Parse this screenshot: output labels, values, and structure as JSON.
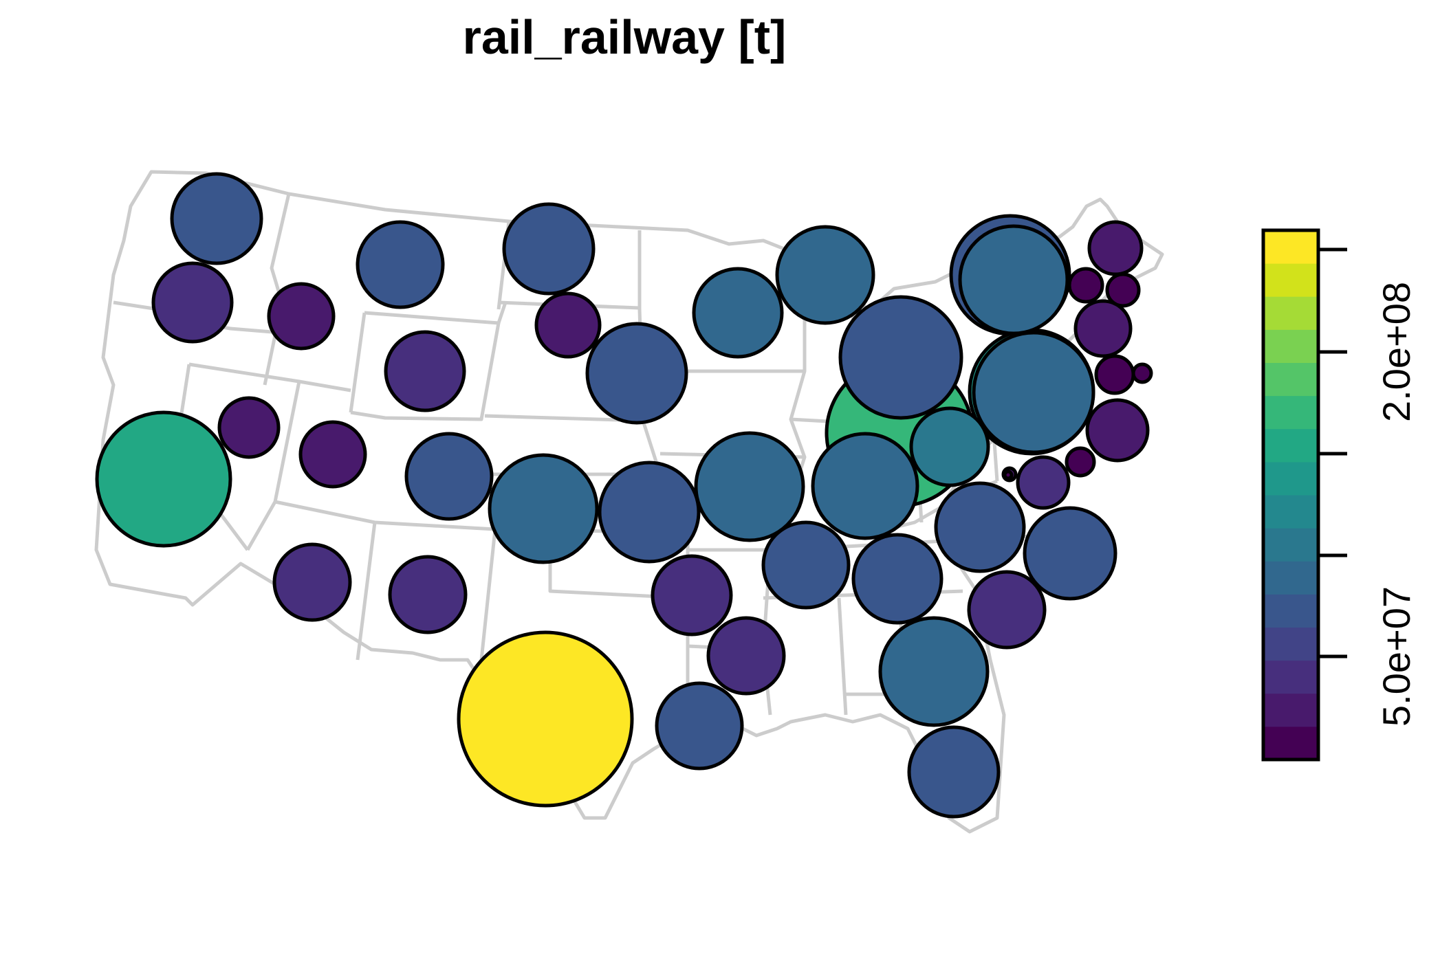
{
  "title": "rail_railway [t]",
  "legend": {
    "colors": [
      "#440154",
      "#481A6C",
      "#472F7D",
      "#414487",
      "#39568C",
      "#31688E",
      "#2A788E",
      "#23888E",
      "#1F988B",
      "#22A884",
      "#35B779",
      "#54C568",
      "#7AD151",
      "#A5DB36",
      "#D2E21B",
      "#FDE725"
    ],
    "ticks": [
      {
        "label": "5.0e+07",
        "labeled": true
      },
      {
        "label": "",
        "labeled": false
      },
      {
        "label": "",
        "labeled": false
      },
      {
        "label": "2.0e+08",
        "labeled": true
      },
      {
        "label": "",
        "labeled": false
      }
    ]
  },
  "states": [
    {
      "name": "WA",
      "color": "#39568C"
    },
    {
      "name": "OR",
      "color": "#472F7D"
    },
    {
      "name": "ID",
      "color": "#481A6C"
    },
    {
      "name": "MT",
      "color": "#39568C"
    },
    {
      "name": "WY",
      "color": "#472F7D"
    },
    {
      "name": "CA",
      "color": "#22A884"
    },
    {
      "name": "NV",
      "color": "#481A6C"
    },
    {
      "name": "UT",
      "color": "#481A6C"
    },
    {
      "name": "CO",
      "color": "#39568C"
    },
    {
      "name": "AZ",
      "color": "#472F7D"
    },
    {
      "name": "NM",
      "color": "#472F7D"
    },
    {
      "name": "ND",
      "color": "#39568C"
    },
    {
      "name": "SD",
      "color": "#481A6C"
    },
    {
      "name": "NE",
      "color": "#39568C"
    },
    {
      "name": "KS",
      "color": "#31688E"
    },
    {
      "name": "OK",
      "color": "#39568C"
    },
    {
      "name": "TX",
      "color": "#FDE725"
    },
    {
      "name": "MN",
      "color": "#31688E"
    },
    {
      "name": "IA",
      "color": "#31688E"
    },
    {
      "name": "MO",
      "color": "#31688E"
    },
    {
      "name": "AR",
      "color": "#472F7D"
    },
    {
      "name": "LA",
      "color": "#39568C"
    },
    {
      "name": "WI",
      "color": "#39568C"
    },
    {
      "name": "IL",
      "color": "#35B779"
    },
    {
      "name": "MI",
      "color": "#39568C"
    },
    {
      "name": "IN",
      "color": "#1F988B"
    },
    {
      "name": "OH",
      "color": "#2A788E"
    },
    {
      "name": "KY",
      "color": "#31688E"
    },
    {
      "name": "TN",
      "color": "#39568C"
    },
    {
      "name": "MS",
      "color": "#472F7D"
    },
    {
      "name": "AL",
      "color": "#39568C"
    },
    {
      "name": "GA",
      "color": "#31688E"
    },
    {
      "name": "FL",
      "color": "#39568C"
    },
    {
      "name": "SC",
      "color": "#472F7D"
    },
    {
      "name": "NC",
      "color": "#39568C"
    },
    {
      "name": "VA",
      "color": "#39568C"
    },
    {
      "name": "WV",
      "color": "#472F7D"
    },
    {
      "name": "PA",
      "color": "#31688E"
    },
    {
      "name": "NY",
      "color": "#31688E"
    },
    {
      "name": "MD",
      "color": "#481A6C"
    },
    {
      "name": "DE",
      "color": "#440154"
    },
    {
      "name": "DC",
      "color": "#440154"
    },
    {
      "name": "NJ",
      "color": "#481A6C"
    },
    {
      "name": "CT",
      "color": "#440154"
    },
    {
      "name": "RI",
      "color": "#440154"
    },
    {
      "name": "MA",
      "color": "#481A6C"
    },
    {
      "name": "VT",
      "color": "#440154"
    },
    {
      "name": "NH",
      "color": "#440154"
    },
    {
      "name": "ME",
      "color": "#481A6C"
    }
  ]
}
